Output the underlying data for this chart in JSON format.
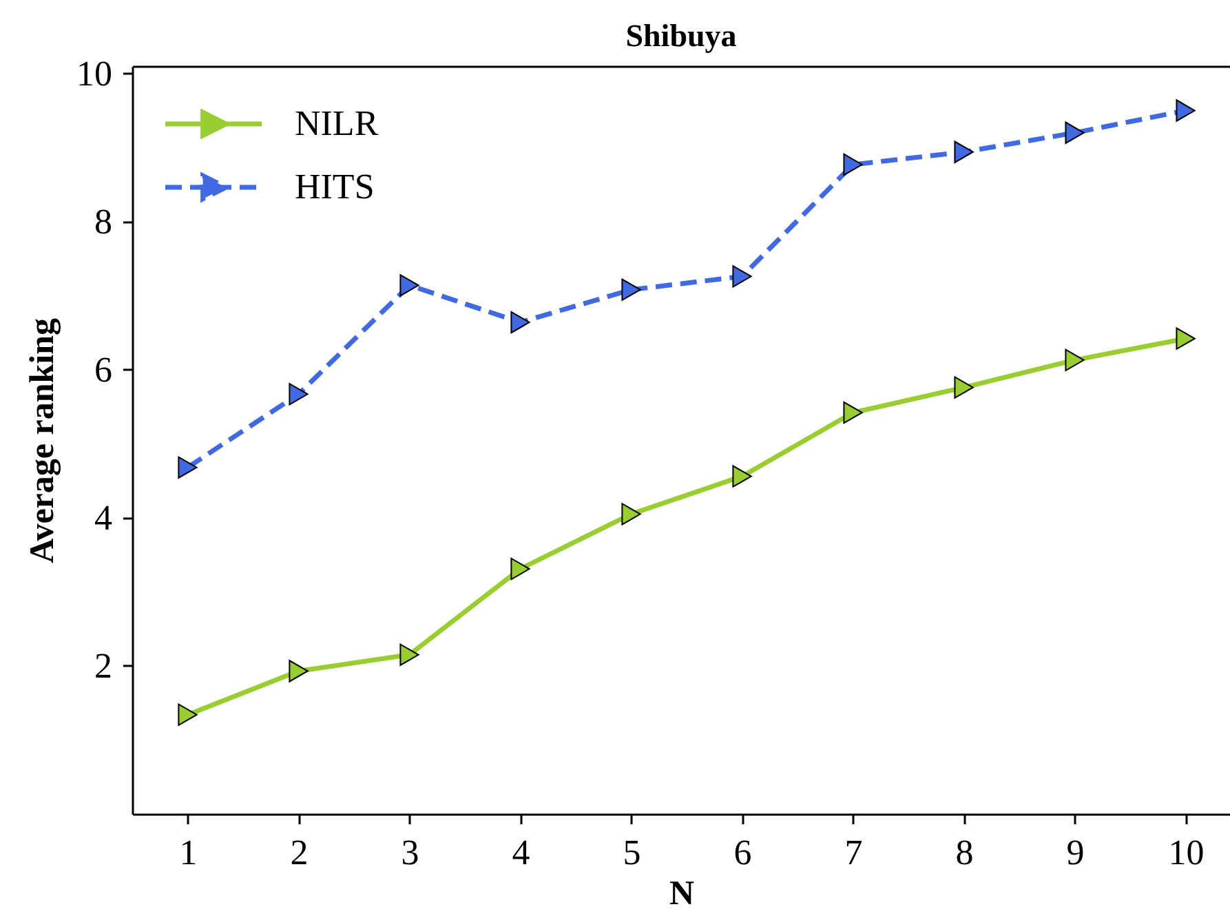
{
  "chart_data": {
    "type": "line",
    "title": "Shibuya",
    "xlabel": "N",
    "ylabel": "Average ranking",
    "x": [
      1,
      2,
      3,
      4,
      5,
      6,
      7,
      8,
      9,
      10
    ],
    "xlim": [
      0.5,
      10.4
    ],
    "xticks": [
      1,
      2,
      3,
      4,
      5,
      6,
      7,
      8,
      9,
      10
    ],
    "ylim": [
      0,
      10.1
    ],
    "yticks": [
      2,
      4,
      6,
      8,
      10
    ],
    "grid": false,
    "legend": "top left",
    "marker": "triangle",
    "series": [
      {
        "name": "NILR",
        "color": "#9acd32",
        "line_style": "solid",
        "values": [
          1.34,
          1.93,
          2.15,
          3.31,
          4.05,
          4.56,
          5.42,
          5.76,
          6.13,
          6.42
        ]
      },
      {
        "name": "HITS",
        "color": "#4169e1",
        "line_style": "dashed",
        "values": [
          4.68,
          5.67,
          7.14,
          6.64,
          7.08,
          7.26,
          8.77,
          8.94,
          9.2,
          9.5
        ]
      }
    ]
  }
}
